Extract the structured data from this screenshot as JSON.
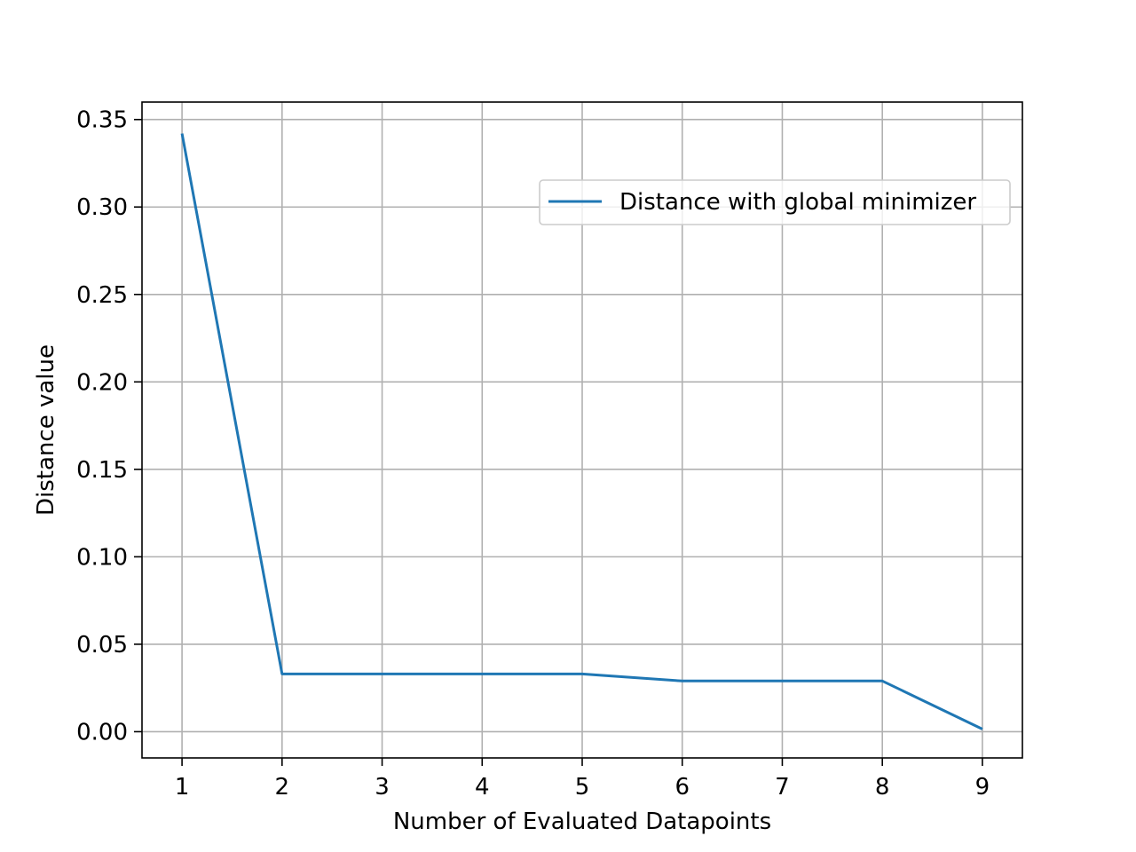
{
  "chart_data": {
    "type": "line",
    "title": "",
    "xlabel": "Number of Evaluated Datapoints",
    "ylabel": "Distance value",
    "x": [
      1,
      2,
      3,
      4,
      5,
      6,
      7,
      8,
      9
    ],
    "series": [
      {
        "name": "Distance with global minimizer",
        "color": "#1f77b4",
        "values": [
          0.342,
          0.033,
          0.033,
          0.033,
          0.033,
          0.029,
          0.029,
          0.029,
          0.0015
        ]
      }
    ],
    "xticks": [
      1,
      2,
      3,
      4,
      5,
      6,
      7,
      8,
      9
    ],
    "xtick_labels": [
      "1",
      "2",
      "3",
      "4",
      "5",
      "6",
      "7",
      "8",
      "9"
    ],
    "yticks": [
      0.0,
      0.05,
      0.1,
      0.15,
      0.2,
      0.25,
      0.3,
      0.35
    ],
    "ytick_labels": [
      "0.00",
      "0.05",
      "0.10",
      "0.15",
      "0.20",
      "0.25",
      "0.30",
      "0.35"
    ],
    "xlim": [
      0.6,
      9.4
    ],
    "ylim": [
      -0.015,
      0.36
    ],
    "grid": true,
    "grid_color": "#b0b0b0",
    "legend_position": "upper-right"
  }
}
